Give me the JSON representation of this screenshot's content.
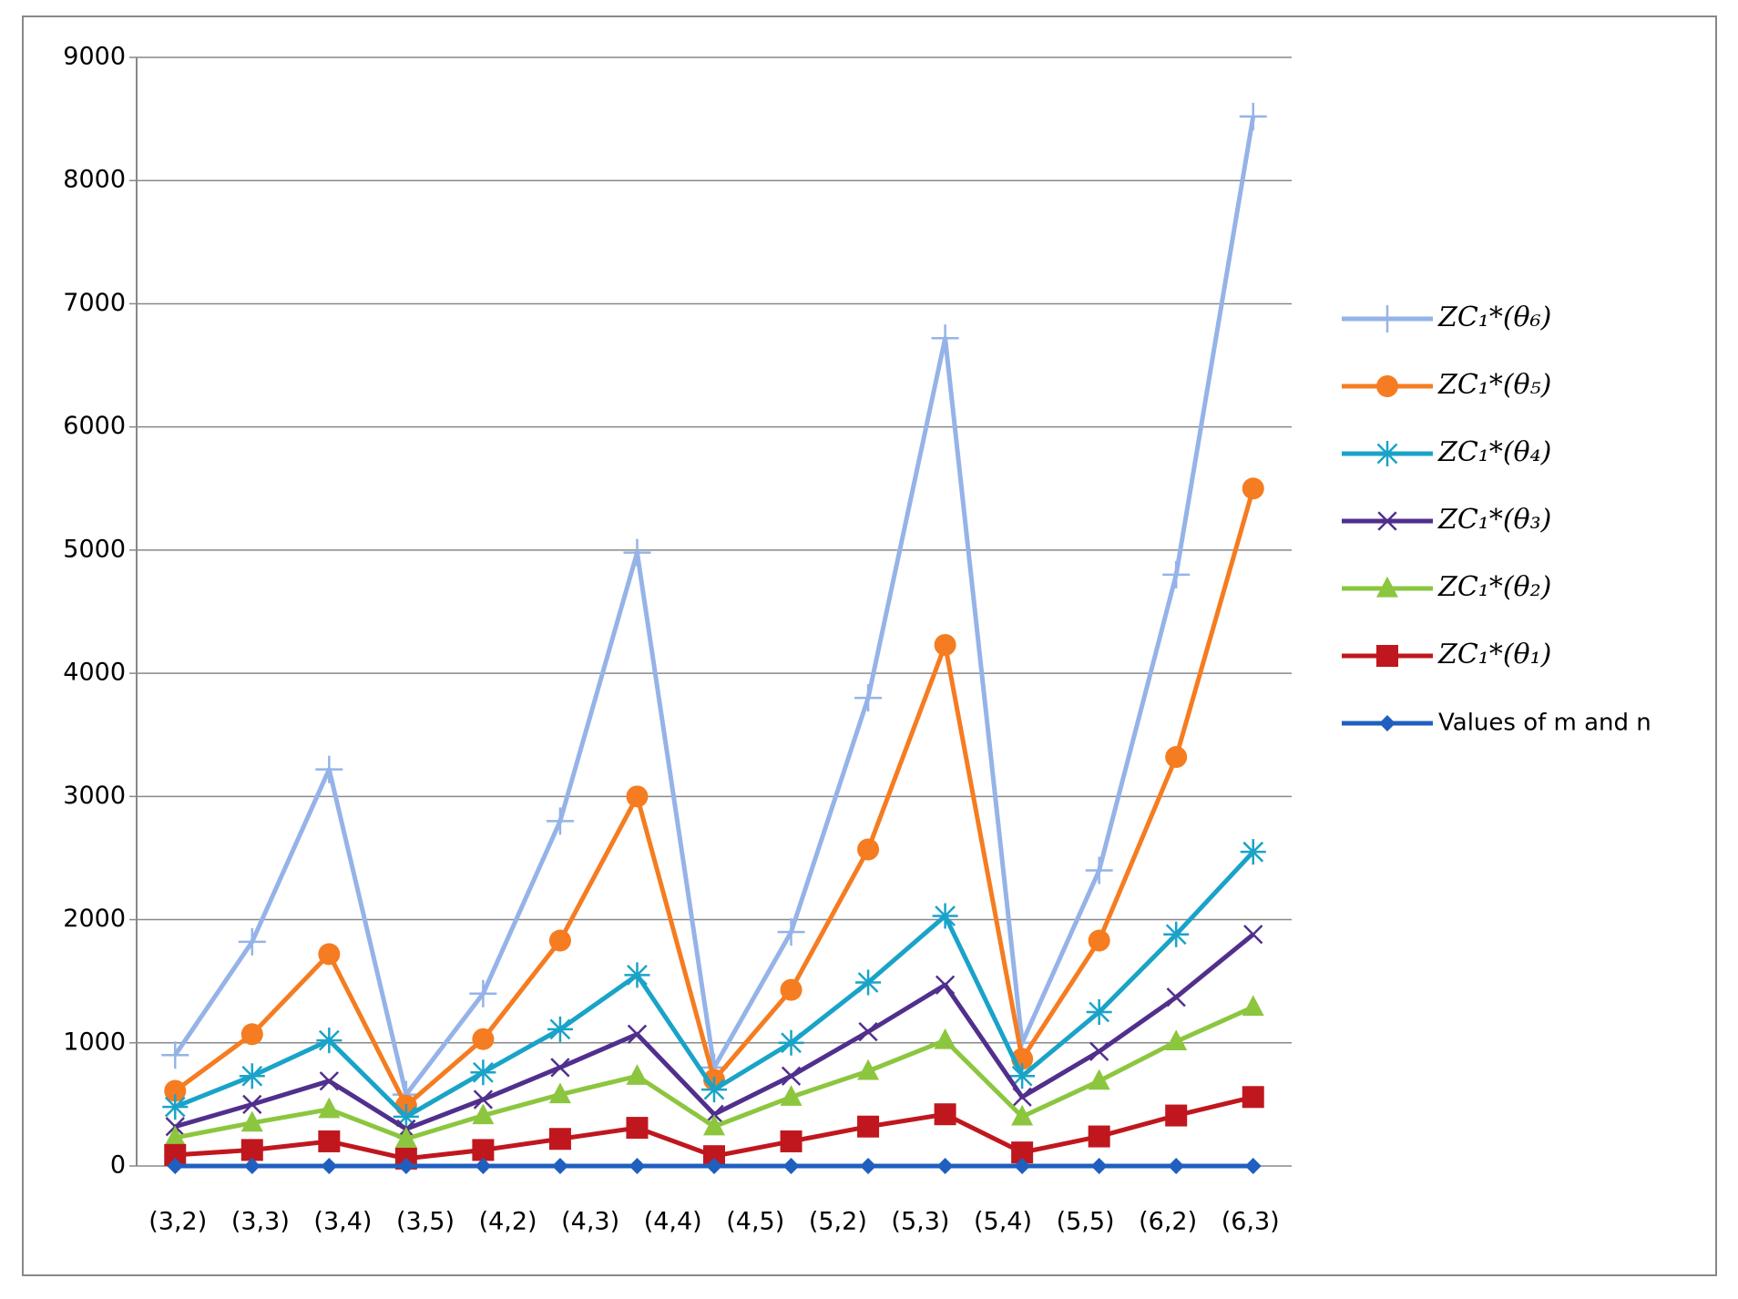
{
  "chart_data": {
    "type": "line",
    "categories": [
      "(3,2)",
      "(3,3)",
      "(3,4)",
      "(3,5)",
      "(4,2)",
      "(4,3)",
      "(4,4)",
      "(4,5)",
      "(5,2)",
      "(5,3)",
      "(5,4)",
      "(5,5)",
      "(6,2)",
      "(6,3)",
      null
    ],
    "series": [
      {
        "name": "ZC₁*(θ₆)",
        "color": "#95b3e8",
        "marker": "plus",
        "values": [
          900,
          1820,
          3220,
          580,
          1400,
          2800,
          4980,
          800,
          1900,
          3800,
          6720,
          1000,
          2400,
          4800,
          8520
        ]
      },
      {
        "name": "ZC₁*(θ₅)",
        "color": "#f57c20",
        "marker": "circle",
        "values": [
          610,
          1070,
          1720,
          490,
          1030,
          1830,
          3000,
          700,
          1430,
          2570,
          4230,
          870,
          1830,
          3320,
          5500
        ]
      },
      {
        "name": "ZC₁*(θ₄)",
        "color": "#1aa3c8",
        "marker": "star",
        "values": [
          480,
          730,
          1020,
          400,
          760,
          1110,
          1550,
          620,
          1000,
          1490,
          2030,
          730,
          1250,
          1880,
          2550
        ]
      },
      {
        "name": "ZC₁*(θ₃)",
        "color": "#512f8c",
        "marker": "x",
        "values": [
          320,
          500,
          690,
          300,
          540,
          800,
          1070,
          420,
          730,
          1090,
          1470,
          560,
          930,
          1370,
          1880
        ]
      },
      {
        "name": "ZC₁*(θ₂)",
        "color": "#8cc63f",
        "marker": "triangle",
        "values": [
          230,
          350,
          460,
          220,
          410,
          580,
          730,
          320,
          560,
          770,
          1020,
          400,
          690,
          1010,
          1290
        ]
      },
      {
        "name": "ZC₁*(θ₁)",
        "color": "#c0171e",
        "marker": "square",
        "values": [
          90,
          130,
          200,
          60,
          130,
          220,
          310,
          80,
          200,
          320,
          420,
          110,
          240,
          410,
          560
        ]
      },
      {
        "name": "Values of m and n",
        "color": "#1f5fbf",
        "marker": "diamond",
        "values": [
          0,
          0,
          0,
          0,
          0,
          0,
          0,
          0,
          0,
          0,
          0,
          0,
          0,
          0,
          0
        ]
      }
    ],
    "ylim": [
      0,
      9000
    ],
    "yticks": [
      0,
      1000,
      2000,
      3000,
      4000,
      5000,
      6000,
      7000,
      8000,
      9000
    ],
    "grid": true,
    "legend": "right"
  }
}
